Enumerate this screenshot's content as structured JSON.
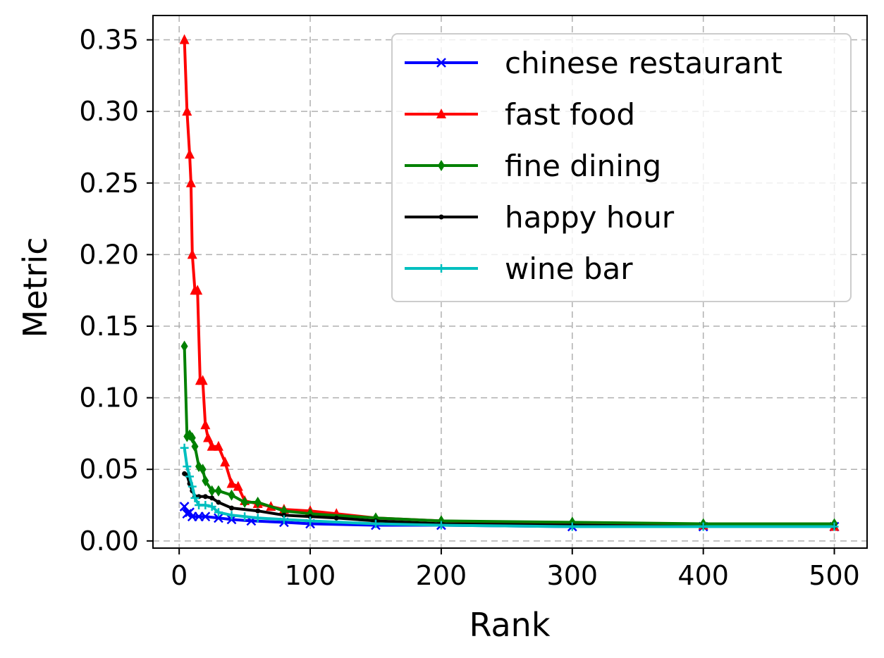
{
  "chart_data": {
    "type": "line",
    "xlabel": "Rank",
    "ylabel": "Metric",
    "xlim": [
      -20,
      525
    ],
    "ylim": [
      -0.005,
      0.367
    ],
    "xticks": [
      0,
      100,
      200,
      300,
      400,
      500
    ],
    "xtick_labels": [
      "0",
      "100",
      "200",
      "300",
      "400",
      "500"
    ],
    "yticks": [
      0.0,
      0.05,
      0.1,
      0.15,
      0.2,
      0.25,
      0.3,
      0.35
    ],
    "ytick_labels": [
      "0.00",
      "0.05",
      "0.10",
      "0.15",
      "0.20",
      "0.25",
      "0.30",
      "0.35"
    ],
    "grid": true,
    "legend_position": "top-right",
    "series": [
      {
        "name": "chinese restaurant",
        "color": "#0000ff",
        "marker": "x",
        "x": [
          4,
          6,
          8,
          10,
          15,
          20,
          30,
          40,
          55,
          80,
          100,
          150,
          200,
          300,
          400,
          500
        ],
        "y": [
          0.024,
          0.019,
          0.02,
          0.017,
          0.017,
          0.017,
          0.016,
          0.015,
          0.014,
          0.013,
          0.012,
          0.011,
          0.011,
          0.01,
          0.01,
          0.01
        ]
      },
      {
        "name": "fast food",
        "color": "#ff0000",
        "marker": "triangle",
        "x": [
          4,
          6,
          8,
          9,
          10,
          12,
          14,
          16,
          18,
          20,
          22,
          25,
          30,
          35,
          40,
          45,
          50,
          60,
          70,
          80,
          100,
          120,
          150,
          200,
          300,
          400,
          500
        ],
        "y": [
          0.35,
          0.3,
          0.27,
          0.25,
          0.2,
          0.175,
          0.175,
          0.112,
          0.112,
          0.081,
          0.072,
          0.066,
          0.066,
          0.055,
          0.04,
          0.038,
          0.028,
          0.026,
          0.024,
          0.022,
          0.021,
          0.019,
          0.016,
          0.014,
          0.012,
          0.011,
          0.01
        ]
      },
      {
        "name": "fine dining",
        "color": "#008000",
        "marker": "diamond",
        "x": [
          4,
          6,
          8,
          10,
          12,
          15,
          18,
          20,
          25,
          30,
          40,
          50,
          60,
          80,
          100,
          150,
          200,
          300,
          400,
          500
        ],
        "y": [
          0.136,
          0.073,
          0.074,
          0.072,
          0.066,
          0.052,
          0.05,
          0.042,
          0.035,
          0.035,
          0.032,
          0.027,
          0.027,
          0.021,
          0.019,
          0.016,
          0.014,
          0.013,
          0.012,
          0.012
        ]
      },
      {
        "name": "happy hour",
        "color": "#000000",
        "marker": "dot",
        "x": [
          4,
          6,
          8,
          10,
          12,
          15,
          20,
          25,
          30,
          40,
          60,
          80,
          100,
          120,
          150,
          200,
          300,
          400,
          500
        ],
        "y": [
          0.047,
          0.046,
          0.04,
          0.035,
          0.031,
          0.031,
          0.031,
          0.03,
          0.027,
          0.023,
          0.021,
          0.018,
          0.017,
          0.016,
          0.014,
          0.012,
          0.011,
          0.01,
          0.01
        ]
      },
      {
        "name": "wine bar",
        "color": "#00bfbf",
        "marker": "plus",
        "x": [
          4,
          6,
          8,
          10,
          12,
          15,
          20,
          25,
          30,
          40,
          50,
          60,
          80,
          100,
          150,
          200,
          300,
          400,
          500
        ],
        "y": [
          0.065,
          0.052,
          0.045,
          0.038,
          0.03,
          0.025,
          0.025,
          0.024,
          0.02,
          0.018,
          0.017,
          0.016,
          0.015,
          0.014,
          0.012,
          0.011,
          0.01,
          0.01,
          0.01
        ]
      }
    ]
  }
}
